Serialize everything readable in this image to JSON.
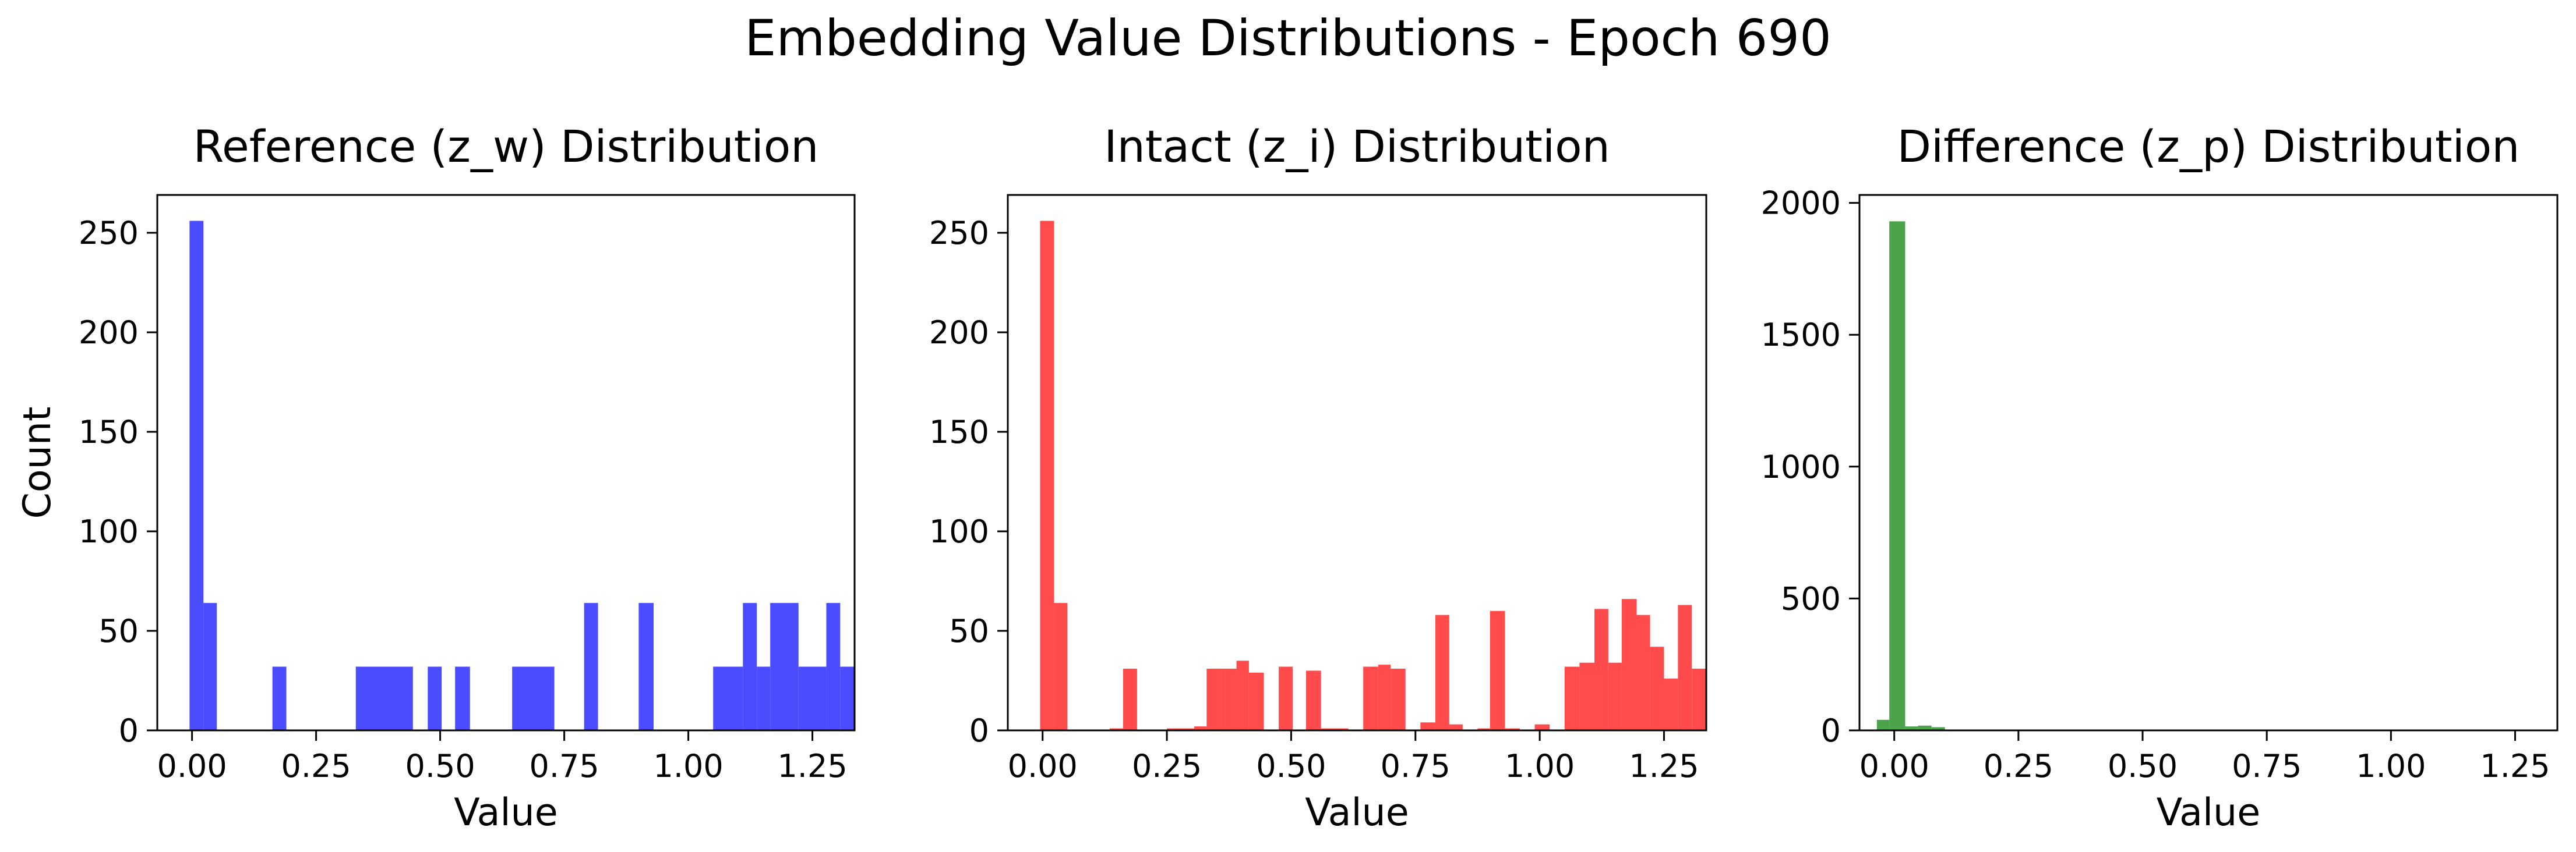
{
  "figure": {
    "title": "Embedding Value Distributions - Epoch 690"
  },
  "chart_data": [
    {
      "type": "bar",
      "title": "Reference (z_w) Distribution",
      "xlabel": "Value",
      "ylabel": "Count",
      "color": "#4b4bff",
      "xlim": [
        -0.07,
        1.335
      ],
      "ylim": [
        0,
        269
      ],
      "xticks": [
        0.0,
        0.25,
        0.5,
        0.75,
        1.0,
        1.25
      ],
      "xtick_labels": [
        "0.00",
        "0.25",
        "0.50",
        "0.75",
        "1.00",
        "1.25"
      ],
      "yticks": [
        0,
        50,
        100,
        150,
        200,
        250
      ],
      "ytick_labels": [
        "0",
        "50",
        "100",
        "150",
        "200",
        "250"
      ],
      "bins": [
        {
          "x0": -0.005,
          "x1": 0.023,
          "y": 256
        },
        {
          "x0": 0.023,
          "x1": 0.05,
          "y": 64
        },
        {
          "x0": 0.162,
          "x1": 0.19,
          "y": 32
        },
        {
          "x0": 0.33,
          "x1": 0.445,
          "y": 32
        },
        {
          "x0": 0.475,
          "x1": 0.503,
          "y": 32
        },
        {
          "x0": 0.53,
          "x1": 0.56,
          "y": 32
        },
        {
          "x0": 0.645,
          "x1": 0.73,
          "y": 32
        },
        {
          "x0": 0.79,
          "x1": 0.818,
          "y": 64
        },
        {
          "x0": 0.9,
          "x1": 0.93,
          "y": 64
        },
        {
          "x0": 1.05,
          "x1": 1.11,
          "y": 32
        },
        {
          "x0": 1.11,
          "x1": 1.138,
          "y": 64
        },
        {
          "x0": 1.138,
          "x1": 1.165,
          "y": 32
        },
        {
          "x0": 1.165,
          "x1": 1.222,
          "y": 64
        },
        {
          "x0": 1.222,
          "x1": 1.278,
          "y": 32
        },
        {
          "x0": 1.278,
          "x1": 1.306,
          "y": 64
        },
        {
          "x0": 1.306,
          "x1": 1.335,
          "y": 32
        }
      ]
    },
    {
      "type": "bar",
      "title": "Intact (z_i) Distribution",
      "xlabel": "Value",
      "ylabel": "",
      "color": "#ff4b4b",
      "xlim": [
        -0.07,
        1.335
      ],
      "ylim": [
        0,
        269
      ],
      "xticks": [
        0.0,
        0.25,
        0.5,
        0.75,
        1.0,
        1.25
      ],
      "xtick_labels": [
        "0.00",
        "0.25",
        "0.50",
        "0.75",
        "1.00",
        "1.25"
      ],
      "yticks": [
        0,
        50,
        100,
        150,
        200,
        250
      ],
      "ytick_labels": [
        "0",
        "50",
        "100",
        "150",
        "200",
        "250"
      ],
      "bins": [
        {
          "x0": -0.005,
          "x1": 0.023,
          "y": 256
        },
        {
          "x0": 0.023,
          "x1": 0.05,
          "y": 64
        },
        {
          "x0": 0.135,
          "x1": 0.162,
          "y": 1
        },
        {
          "x0": 0.162,
          "x1": 0.19,
          "y": 31
        },
        {
          "x0": 0.25,
          "x1": 0.28,
          "y": 1
        },
        {
          "x0": 0.28,
          "x1": 0.305,
          "y": 1
        },
        {
          "x0": 0.305,
          "x1": 0.33,
          "y": 2
        },
        {
          "x0": 0.33,
          "x1": 0.36,
          "y": 31
        },
        {
          "x0": 0.36,
          "x1": 0.39,
          "y": 31
        },
        {
          "x0": 0.39,
          "x1": 0.415,
          "y": 35
        },
        {
          "x0": 0.415,
          "x1": 0.445,
          "y": 29
        },
        {
          "x0": 0.475,
          "x1": 0.503,
          "y": 32
        },
        {
          "x0": 0.53,
          "x1": 0.56,
          "y": 30
        },
        {
          "x0": 0.56,
          "x1": 0.59,
          "y": 1
        },
        {
          "x0": 0.59,
          "x1": 0.615,
          "y": 1
        },
        {
          "x0": 0.645,
          "x1": 0.675,
          "y": 32
        },
        {
          "x0": 0.675,
          "x1": 0.7,
          "y": 33
        },
        {
          "x0": 0.7,
          "x1": 0.73,
          "y": 31
        },
        {
          "x0": 0.76,
          "x1": 0.79,
          "y": 4
        },
        {
          "x0": 0.79,
          "x1": 0.818,
          "y": 58
        },
        {
          "x0": 0.818,
          "x1": 0.845,
          "y": 3
        },
        {
          "x0": 0.875,
          "x1": 0.9,
          "y": 1
        },
        {
          "x0": 0.9,
          "x1": 0.93,
          "y": 60
        },
        {
          "x0": 0.93,
          "x1": 0.96,
          "y": 1
        },
        {
          "x0": 0.99,
          "x1": 1.02,
          "y": 3
        },
        {
          "x0": 1.05,
          "x1": 1.08,
          "y": 32
        },
        {
          "x0": 1.08,
          "x1": 1.11,
          "y": 34
        },
        {
          "x0": 1.11,
          "x1": 1.138,
          "y": 61
        },
        {
          "x0": 1.138,
          "x1": 1.165,
          "y": 34
        },
        {
          "x0": 1.165,
          "x1": 1.195,
          "y": 66
        },
        {
          "x0": 1.195,
          "x1": 1.222,
          "y": 58
        },
        {
          "x0": 1.222,
          "x1": 1.25,
          "y": 42
        },
        {
          "x0": 1.25,
          "x1": 1.278,
          "y": 26
        },
        {
          "x0": 1.278,
          "x1": 1.306,
          "y": 63
        },
        {
          "x0": 1.306,
          "x1": 1.335,
          "y": 31
        }
      ]
    },
    {
      "type": "bar",
      "title": "Difference (z_p) Distribution",
      "xlabel": "Value",
      "ylabel": "",
      "color": "#4ba34b",
      "xlim": [
        -0.07,
        1.335
      ],
      "ylim": [
        0,
        2030
      ],
      "xticks": [
        0.0,
        0.25,
        0.5,
        0.75,
        1.0,
        1.25
      ],
      "xtick_labels": [
        "0.00",
        "0.25",
        "0.50",
        "0.75",
        "1.00",
        "1.25"
      ],
      "yticks": [
        0,
        500,
        1000,
        1500,
        2000
      ],
      "ytick_labels": [
        "0",
        "500",
        "1000",
        "1500",
        "2000"
      ],
      "bins": [
        {
          "x0": -0.035,
          "x1": -0.01,
          "y": 40
        },
        {
          "x0": -0.01,
          "x1": 0.022,
          "y": 1930
        },
        {
          "x0": 0.022,
          "x1": 0.048,
          "y": 15
        },
        {
          "x0": 0.048,
          "x1": 0.075,
          "y": 18
        },
        {
          "x0": 0.075,
          "x1": 0.102,
          "y": 12
        }
      ]
    }
  ]
}
